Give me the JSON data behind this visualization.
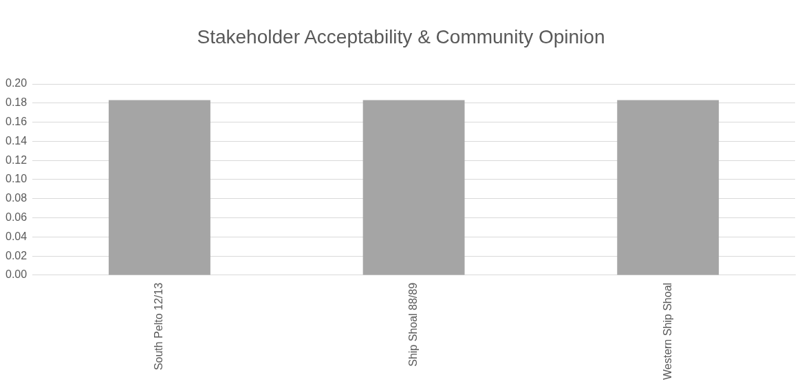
{
  "chart_data": {
    "type": "bar",
    "title": "Stakeholder Acceptability & Community Opinion",
    "categories": [
      "South Pelto 12/13",
      "Ship Shoal 88/89",
      "Western Ship Shoal"
    ],
    "values": [
      0.183,
      0.183,
      0.183
    ],
    "color": "#a5a5a5",
    "ylim": [
      0,
      0.2
    ],
    "yticks": [
      {
        "value": 0,
        "label": "0.00"
      },
      {
        "value": 0.02,
        "label": "0.02"
      },
      {
        "value": 0.04,
        "label": "0.04"
      },
      {
        "value": 0.06,
        "label": "0.06"
      },
      {
        "value": 0.08,
        "label": "0.08"
      },
      {
        "value": 0.1,
        "label": "0.10"
      },
      {
        "value": 0.12,
        "label": "0.12"
      },
      {
        "value": 0.14,
        "label": "0.14"
      },
      {
        "value": 0.16,
        "label": "0.16"
      },
      {
        "value": 0.18,
        "label": "0.18"
      },
      {
        "value": 0.2,
        "label": "0.20"
      }
    ],
    "grid": "y",
    "legend": false
  }
}
